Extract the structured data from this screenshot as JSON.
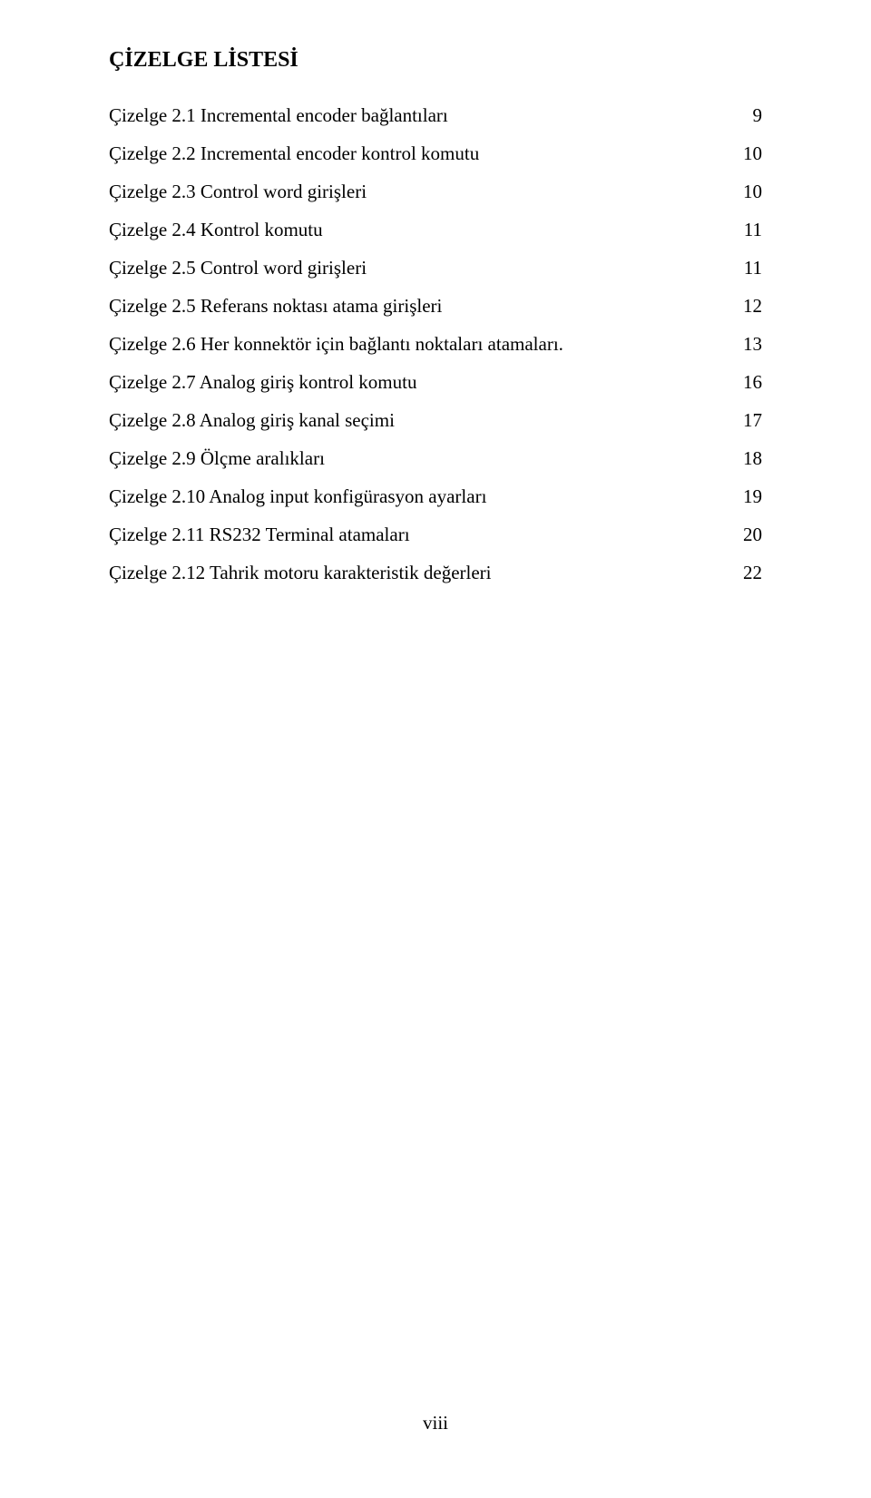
{
  "title": "ÇİZELGE LİSTESİ",
  "entries": [
    {
      "label": "Çizelge 2.1 Incremental encoder bağlantıları",
      "page": "9"
    },
    {
      "label": "Çizelge 2.2 Incremental encoder kontrol komutu",
      "page": "10"
    },
    {
      "label": "Çizelge 2.3 Control word girişleri",
      "page": "10"
    },
    {
      "label": "Çizelge 2.4 Kontrol komutu",
      "page": "11"
    },
    {
      "label": "Çizelge 2.5 Control word girişleri",
      "page": "11"
    },
    {
      "label": "Çizelge 2.5 Referans noktası atama girişleri",
      "page": "12"
    },
    {
      "label": "Çizelge 2.6 Her konnektör için bağlantı noktaları atamaları.",
      "page": "13"
    },
    {
      "label": "Çizelge 2.7  Analog giriş kontrol komutu",
      "page": "16"
    },
    {
      "label": "Çizelge 2.8  Analog giriş kanal seçimi",
      "page": "17"
    },
    {
      "label": "Çizelge 2.9  Ölçme aralıkları",
      "page": "18"
    },
    {
      "label": "Çizelge 2.10 Analog input konfigürasyon ayarları",
      "page": "19"
    },
    {
      "label": "Çizelge 2.11 RS232 Terminal atamaları",
      "page": "20"
    },
    {
      "label": "Çizelge 2.12 Tahrik motoru karakteristik değerleri",
      "page": "22"
    }
  ],
  "pageNumber": "viii",
  "colors": {
    "text": "#000000",
    "background": "#ffffff"
  },
  "typography": {
    "font_family": "Times New Roman",
    "title_fontsize_pt": 18,
    "title_fontweight": "bold",
    "body_fontsize_pt": 16,
    "line_height": 2.0
  }
}
